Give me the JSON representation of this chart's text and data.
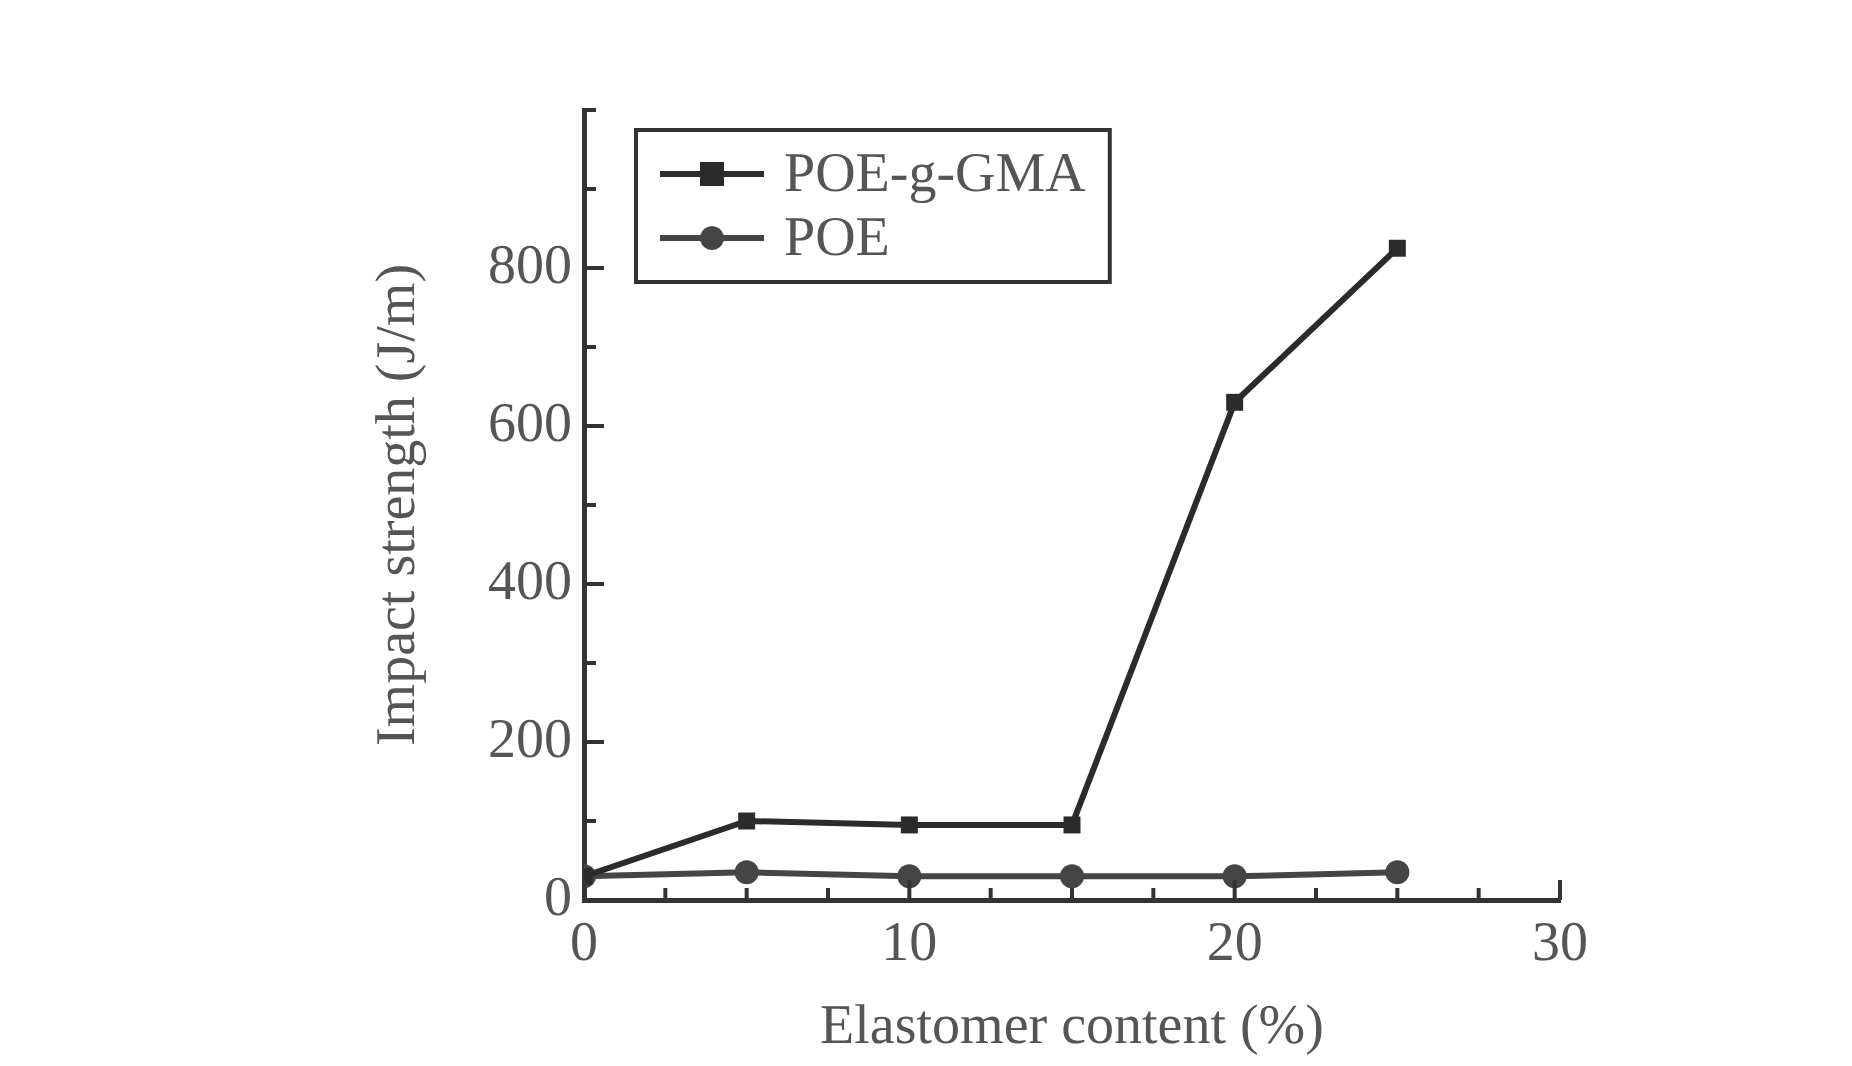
{
  "chart_data": {
    "type": "line",
    "xlabel": "Elastomer content (%)",
    "ylabel": "Impact strength (J/m)",
    "x": [
      0,
      5,
      10,
      15,
      20,
      25
    ],
    "series": [
      {
        "name": "POE-g-GMA",
        "color": "#2b2b2b",
        "marker": "square",
        "values": [
          30,
          100,
          95,
          95,
          630,
          825
        ]
      },
      {
        "name": "POE",
        "color": "#454545",
        "marker": "circle",
        "values": [
          30,
          35,
          30,
          30,
          30,
          35
        ]
      }
    ],
    "xlim": [
      0,
      30
    ],
    "xticks": [
      0,
      {
        "value": 2.5,
        "label": null
      },
      {
        "value": 5,
        "label": null
      },
      {
        "value": 7.5,
        "label": null
      },
      10,
      {
        "value": 12.5,
        "label": null
      },
      {
        "value": 15,
        "label": null
      },
      {
        "value": 17.5,
        "label": null
      },
      20,
      {
        "value": 22.5,
        "label": null
      },
      {
        "value": 25,
        "label": null
      },
      {
        "value": 27.5,
        "label": null
      },
      30
    ],
    "ylim": [
      0,
      1000
    ],
    "yticks": [
      0,
      {
        "value": 100,
        "label": null
      },
      200,
      {
        "value": 300,
        "label": null
      },
      400,
      {
        "value": 500,
        "label": null
      },
      600,
      {
        "value": 700,
        "label": null
      },
      800,
      {
        "value": 900,
        "label": null
      },
      {
        "value": 1000,
        "label": null
      }
    ],
    "grid": false,
    "legend": "top left",
    "line_style": "solid"
  }
}
